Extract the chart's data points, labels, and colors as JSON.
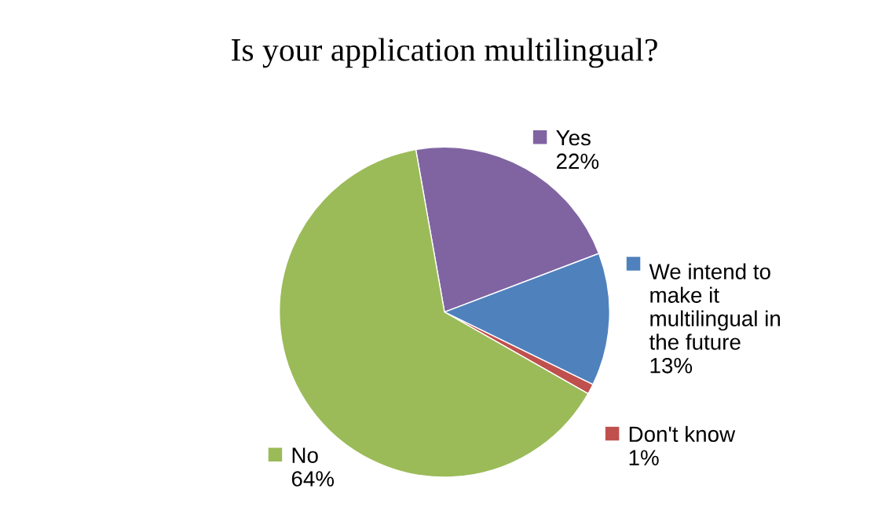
{
  "chart_data": {
    "type": "pie",
    "title": "Is your application multilingual?",
    "categories": [
      "Yes",
      "We intend to\nmake it\nmultilingual in\nthe future",
      "Don't know",
      "No"
    ],
    "values": [
      22,
      13,
      1,
      64
    ],
    "value_labels": [
      "22%",
      "13%",
      "1%",
      "64%"
    ],
    "colors": [
      "#8064a2",
      "#4f81bd",
      "#c0504d",
      "#9bbb59"
    ],
    "legend": "right"
  }
}
